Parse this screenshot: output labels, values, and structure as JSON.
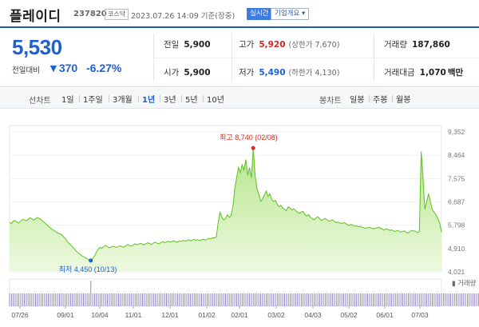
{
  "header": {
    "stock_name": "플레이디",
    "stock_code": "237820",
    "market_badge": "코스닥",
    "datetime": "2023.07.26 14:09 기준(장중)",
    "live_badge": "실시간",
    "company_info_label": "기업개요 ▾"
  },
  "summary": {
    "current_price": "5,530",
    "change_label": "전일대비",
    "change_value": "▼370",
    "change_pct": "-6.27%",
    "prev_close": {
      "label": "전일",
      "value": "5,900"
    },
    "open": {
      "label": "시가",
      "value": "5,900"
    },
    "high": {
      "label": "고가",
      "value": "5,920",
      "limit": "(상한가 7,670)"
    },
    "low": {
      "label": "저가",
      "value": "5,490",
      "limit": "(하한가 4,130)"
    },
    "volume": {
      "label": "거래량",
      "value": "187,860"
    },
    "amount": {
      "label": "거래대금",
      "value": "1,070",
      "unit": "백만"
    }
  },
  "toolbar": {
    "line_chart_label": "선차트",
    "periods": [
      "1일",
      "1주일",
      "3개월",
      "1년",
      "3년",
      "5년",
      "10년"
    ],
    "active_period": "1년",
    "candle_chart_label": "봉차트",
    "candle_periods": [
      "일봉",
      "주봉",
      "월봉"
    ]
  },
  "chart_data": {
    "type": "area",
    "y_ticks": [
      "9,352",
      "8,464",
      "7,575",
      "6,687",
      "5,798",
      "4,910",
      "4,021"
    ],
    "y_tick_values": [
      9352,
      8464,
      7575,
      6687,
      5798,
      4910,
      4021
    ],
    "ylim": [
      4021,
      9352
    ],
    "x_ticks": [
      "07/26",
      "09/01",
      "10/04",
      "11/01",
      "12/01",
      "01/02",
      "02/01",
      "03/02",
      "04/03",
      "05/02",
      "06/01",
      "07/03"
    ],
    "high_marker": {
      "label": "최고",
      "value": 8740,
      "text": "8,740 (02/08)"
    },
    "low_marker": {
      "label": "최저",
      "value": 4450,
      "text": "4,450 (10/13)"
    },
    "volume_legend": "거래량",
    "colors": {
      "line": "#5dc21e",
      "fill_top": "#b4e68a",
      "fill_bottom": "#eef9e1",
      "high": "#d7261e",
      "low": "#1e5fd4",
      "volume": "#8a7bb8"
    },
    "price_series": [
      5900,
      5860,
      5950,
      5980,
      5920,
      5880,
      5960,
      6020,
      6000,
      5970,
      6010,
      6080,
      6050,
      5990,
      6040,
      6090,
      6060,
      6010,
      5950,
      5890,
      5830,
      5760,
      5700,
      5640,
      5600,
      5560,
      5500,
      5480,
      5450,
      5380,
      5300,
      5200,
      5120,
      5050,
      4980,
      4900,
      4820,
      4760,
      4700,
      4640,
      4600,
      4560,
      4520,
      4480,
      4450,
      4520,
      4620,
      4760,
      4880,
      4950,
      4920,
      4980,
      5030,
      4980,
      4940,
      4960,
      5000,
      4970,
      4950,
      4990,
      5010,
      4980,
      4960,
      5020,
      5060,
      5030,
      5000,
      5040,
      5090,
      5050,
      5080,
      5110,
      5070,
      5050,
      5100,
      5130,
      5090,
      5070,
      5120,
      5150,
      5110,
      5090,
      5140,
      5170,
      5130,
      5160,
      5190,
      5150,
      5180,
      5210,
      5170,
      5150,
      5200,
      5180,
      5220,
      5190,
      5210,
      5240,
      5200,
      5230,
      5260,
      5220,
      5250,
      5210,
      5240,
      5270,
      5230,
      5260,
      5300,
      5280,
      5320,
      5310,
      5350,
      5900,
      6300,
      6100,
      6000,
      6050,
      6200,
      6100,
      6150,
      6500,
      7200,
      7600,
      8000,
      7800,
      8100,
      7900,
      8300,
      7700,
      8000,
      7600,
      8740,
      7700,
      7200,
      7000,
      6700,
      6800,
      6950,
      7100,
      6900,
      7000,
      6800,
      6700,
      6750,
      6600,
      6500,
      6550,
      6450,
      6400,
      6350,
      6500,
      6450,
      6380,
      6420,
      6350,
      6300,
      6250,
      6300,
      6320,
      6200,
      6150,
      6200,
      6100,
      6050,
      6000,
      6080,
      6120,
      6050,
      5980,
      6020,
      6060,
      6000,
      5950,
      5980,
      6000,
      5940,
      5900,
      5920,
      5880,
      5860,
      5900,
      5870,
      5820,
      5790,
      5830,
      5800,
      5760,
      5780,
      5740,
      5760,
      5720,
      5700,
      5680,
      5700,
      5720,
      5690,
      5660,
      5680,
      5700,
      5720,
      5680,
      5650,
      5610,
      5660,
      5640,
      5600,
      5620,
      5580,
      5560,
      5600,
      5570,
      5540,
      5560,
      5580,
      5520,
      5500,
      5560,
      5600,
      5580,
      5560,
      5520,
      5550,
      8600,
      7600,
      6400,
      6700,
      7000,
      6700,
      6400,
      6300,
      6200,
      6050,
      5900,
      5530
    ],
    "volume_series": [
      1,
      1,
      1,
      1,
      1,
      1,
      1,
      1,
      1,
      1,
      1,
      1,
      1,
      1,
      1,
      1,
      1,
      1,
      1,
      1,
      1,
      1,
      1,
      1,
      1,
      1,
      1,
      1,
      1,
      1,
      1,
      1,
      1,
      1,
      1,
      1,
      1,
      1,
      1,
      1,
      1,
      1,
      1,
      1,
      2,
      1,
      1,
      1,
      1,
      1,
      1,
      1,
      1,
      1,
      1,
      1,
      1,
      1,
      1,
      1,
      1,
      1,
      1,
      1,
      1,
      1,
      1,
      1,
      1,
      1,
      1,
      1,
      1,
      1,
      1,
      1,
      1,
      1,
      1,
      1,
      1,
      1,
      1,
      1,
      1,
      1,
      1,
      1,
      1,
      1,
      1,
      1,
      1,
      1,
      1,
      1,
      1,
      1,
      1,
      1,
      1,
      1,
      1,
      1,
      1,
      1,
      1,
      1,
      1,
      1,
      1,
      1,
      1,
      1,
      1,
      1,
      1,
      1,
      1,
      1,
      1,
      1,
      1,
      1,
      1,
      1,
      1,
      1,
      1,
      1,
      1,
      1,
      1,
      1,
      1,
      1,
      1,
      1,
      1,
      1,
      1,
      1,
      1,
      1,
      1,
      1,
      1,
      1,
      1,
      1,
      1,
      1,
      1,
      1,
      1,
      1,
      1,
      1,
      1,
      1,
      1,
      1,
      1,
      1,
      1,
      1,
      1,
      1,
      1,
      1,
      1,
      1,
      1,
      1,
      1,
      1,
      1,
      1,
      1,
      1,
      1,
      1,
      1,
      1,
      1,
      1,
      1,
      1,
      1,
      1,
      1,
      1,
      1,
      1,
      1,
      1,
      1,
      1,
      1,
      1,
      1,
      1,
      1,
      1,
      1,
      1,
      1,
      1,
      1,
      1,
      1,
      1,
      1,
      1,
      1,
      1,
      1,
      1,
      1,
      1,
      1,
      1,
      1,
      1,
      1,
      1,
      1,
      1,
      1,
      1,
      1,
      1,
      1,
      1,
      1,
      1,
      1,
      1,
      1,
      1,
      1,
      1,
      1,
      1,
      1,
      1,
      1,
      1,
      1,
      1,
      1,
      1,
      1,
      1,
      1,
      1,
      1,
      1,
      1,
      1
    ]
  }
}
